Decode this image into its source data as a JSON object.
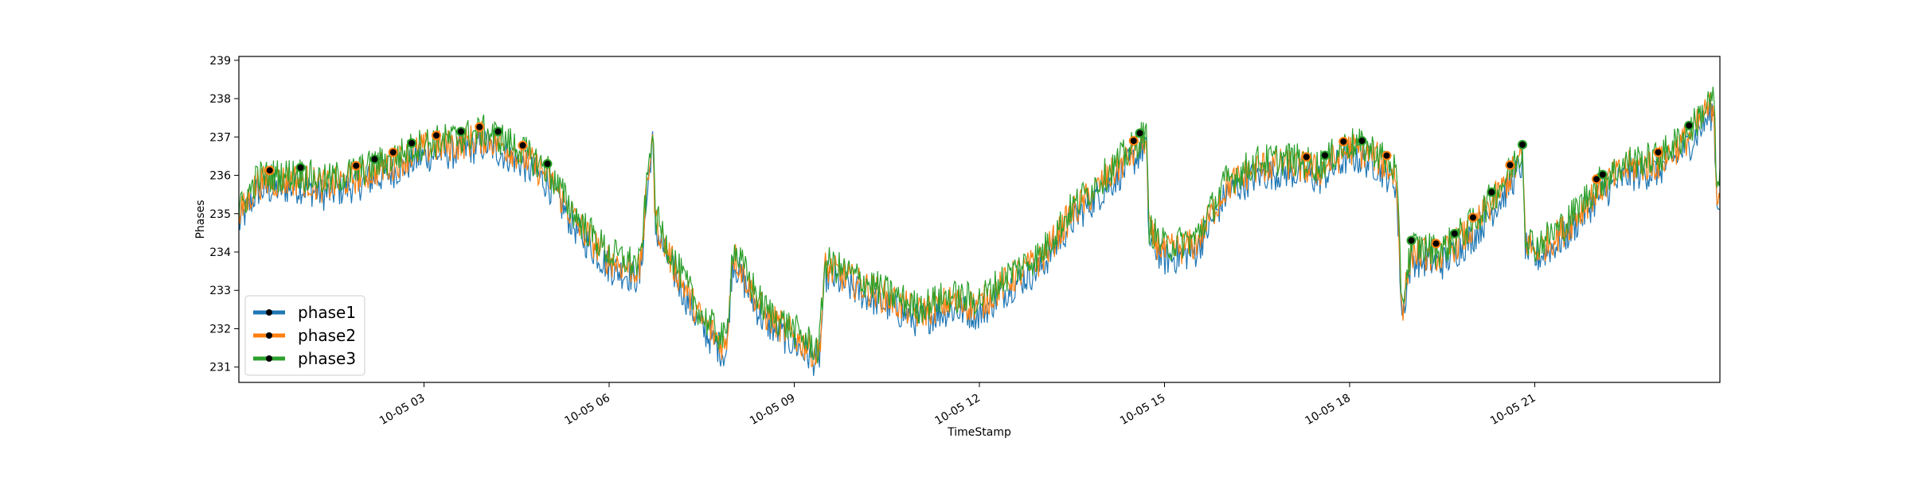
{
  "chart_data": {
    "type": "line",
    "title": "",
    "xlabel": "TimeStamp",
    "ylabel": "Phases",
    "xlim": [
      "10-05 00:00",
      "10-05 24:00"
    ],
    "ylim": [
      230.6,
      239.1
    ],
    "grid": false,
    "legend_position": "lower-left",
    "x_ticks": [
      {
        "x": "10-05 03",
        "hour": 3
      },
      {
        "x": "10-05 06",
        "hour": 6
      },
      {
        "x": "10-05 09",
        "hour": 9
      },
      {
        "x": "10-05 12",
        "hour": 12
      },
      {
        "x": "10-05 15",
        "hour": 15
      },
      {
        "x": "10-05 18",
        "hour": 18
      },
      {
        "x": "10-05 21",
        "hour": 21
      }
    ],
    "y_ticks": [
      231,
      232,
      233,
      234,
      235,
      236,
      237,
      238,
      239
    ],
    "series": [
      {
        "name": "phase1",
        "color": "#1f77b4",
        "offset": -0.2
      },
      {
        "name": "phase2",
        "color": "#ff7f0e",
        "offset": 0.0
      },
      {
        "name": "phase3",
        "color": "#2ca02c",
        "offset": 0.15
      }
    ],
    "hours": [
      0,
      0.3,
      1.0,
      1.4,
      2.0,
      2.5,
      3.0,
      3.5,
      4.0,
      4.5,
      5.0,
      5.5,
      6.0,
      6.5,
      6.7,
      6.75,
      7.0,
      7.5,
      7.9,
      8.0,
      8.5,
      9.0,
      9.4,
      9.5,
      10.0,
      10.5,
      11.0,
      11.5,
      12.0,
      12.5,
      13.0,
      13.5,
      14.0,
      14.5,
      14.7,
      14.75,
      15.0,
      15.5,
      16.0,
      16.5,
      17.0,
      17.5,
      18.0,
      18.4,
      18.75,
      18.85,
      19.0,
      19.5,
      20.0,
      20.5,
      20.8,
      20.85,
      21.0,
      21.5,
      22.0,
      22.5,
      23.0,
      23.5,
      23.9,
      23.95,
      24.0
    ],
    "values": [
      234.9,
      235.8,
      235.9,
      235.7,
      236.0,
      236.3,
      236.7,
      236.8,
      237.0,
      236.6,
      236.0,
      234.7,
      233.8,
      233.5,
      237.2,
      234.8,
      233.8,
      232.2,
      231.5,
      234.0,
      232.4,
      231.8,
      231.3,
      233.6,
      233.2,
      232.8,
      232.4,
      232.7,
      232.6,
      233.3,
      233.8,
      235.0,
      235.8,
      236.6,
      237.0,
      234.5,
      234.0,
      234.2,
      235.7,
      236.2,
      236.3,
      236.1,
      236.7,
      236.5,
      236.0,
      232.5,
      234.0,
      233.9,
      234.6,
      235.7,
      236.5,
      234.3,
      234.0,
      234.6,
      235.6,
      236.2,
      236.3,
      237.0,
      237.9,
      235.5,
      235.6
    ],
    "marker_hours": [
      0.5,
      1.0,
      1.9,
      2.2,
      2.5,
      2.8,
      3.2,
      3.6,
      3.9,
      4.2,
      4.6,
      5.0,
      14.5,
      14.6,
      17.3,
      17.6,
      17.9,
      18.2,
      18.6,
      19.0,
      19.4,
      19.7,
      20.0,
      20.3,
      20.6,
      20.8,
      22.0,
      22.1,
      23.0,
      23.5
    ]
  }
}
